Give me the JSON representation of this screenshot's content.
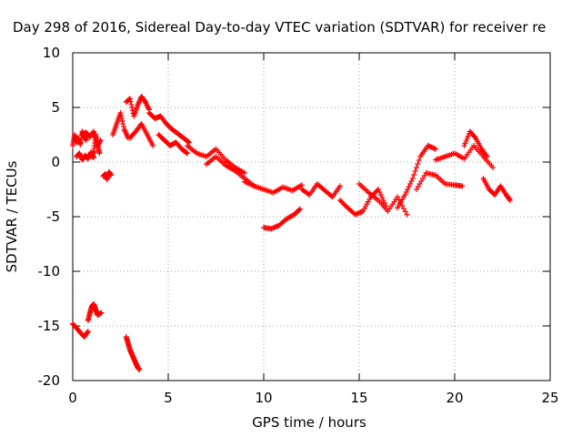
{
  "chart_data": {
    "type": "scatter",
    "title": "Day 298 of 2016, Sidereal Day-to-day VTEC variation (SDTVAR) for receiver re",
    "xlabel": "GPS time / hours",
    "ylabel": "SDTVAR / TECUs",
    "xlim": [
      0,
      25
    ],
    "ylim": [
      -20,
      10
    ],
    "x_ticks": [
      "0",
      "5",
      "10",
      "15",
      "20",
      "25"
    ],
    "y_ticks": [
      "-20",
      "-15",
      "-10",
      "-5",
      "0",
      "5",
      "10"
    ],
    "grid": true,
    "marker": "+",
    "series_color": "#ff0000",
    "series": [
      {
        "name": "SDTVAR",
        "segments": [
          {
            "x": [
              0.0,
              0.1,
              0.2,
              0.3,
              0.4,
              0.5,
              0.6,
              0.7
            ],
            "y": [
              1.5,
              2.5,
              1.8,
              2.2,
              1.6,
              2.8,
              2.4,
              2.0
            ]
          },
          {
            "x": [
              0.2,
              0.35,
              0.5,
              0.65,
              0.8,
              0.95,
              1.1
            ],
            "y": [
              0.5,
              0.8,
              0.2,
              0.6,
              0.3,
              0.9,
              0.4
            ]
          },
          {
            "x": [
              0.5,
              0.7,
              0.9,
              1.1,
              1.3,
              1.45
            ],
            "y": [
              2.5,
              2.7,
              2.3,
              2.8,
              1.5,
              2.0
            ]
          },
          {
            "x": [
              1.0,
              1.1,
              1.2,
              1.3,
              1.4
            ],
            "y": [
              0.5,
              1.0,
              2.5,
              1.5,
              0.8
            ]
          },
          {
            "x": [
              1.6,
              1.7,
              1.8,
              1.9,
              2.0
            ],
            "y": [
              -1.3,
              -1.1,
              -1.6,
              -0.9,
              -1.2
            ]
          },
          {
            "x": [
              2.1,
              2.3,
              2.5,
              2.7,
              2.9
            ],
            "y": [
              2.5,
              3.5,
              4.5,
              3.0,
              2.2
            ]
          },
          {
            "x": [
              2.8,
              3.0,
              3.2,
              3.4,
              3.6,
              3.8,
              4.0
            ],
            "y": [
              5.5,
              5.8,
              4.2,
              5.2,
              6.0,
              5.5,
              4.8
            ]
          },
          {
            "x": [
              3.0,
              3.3,
              3.6,
              3.9,
              4.2
            ],
            "y": [
              2.2,
              2.8,
              3.5,
              2.5,
              1.5
            ]
          },
          {
            "x": [
              4.0,
              4.3,
              4.6,
              4.9,
              5.2,
              5.5,
              5.8,
              6.1
            ],
            "y": [
              4.5,
              4.0,
              4.2,
              3.5,
              3.0,
              2.6,
              2.2,
              1.8
            ]
          },
          {
            "x": [
              4.5,
              4.8,
              5.1,
              5.4,
              5.7,
              6.0
            ],
            "y": [
              2.5,
              2.0,
              1.5,
              1.8,
              1.2,
              0.8
            ]
          },
          {
            "x": [
              6.0,
              6.5,
              7.0,
              7.5,
              8.0,
              8.5,
              9.0
            ],
            "y": [
              1.5,
              0.8,
              0.5,
              1.2,
              0.2,
              -0.5,
              -1.0
            ]
          },
          {
            "x": [
              7.0,
              7.5,
              8.0,
              8.5,
              9.0,
              9.5
            ],
            "y": [
              -0.2,
              0.5,
              -0.3,
              -0.8,
              -1.5,
              -2.2
            ]
          },
          {
            "x": [
              9.0,
              9.5,
              10.0,
              10.5,
              11.0,
              11.5,
              12.0
            ],
            "y": [
              -1.8,
              -2.2,
              -2.5,
              -2.8,
              -2.3,
              -2.6,
              -2.1
            ]
          },
          {
            "x": [
              10.0,
              10.4,
              10.8,
              11.2,
              11.6,
              11.9
            ],
            "y": [
              -6.0,
              -6.1,
              -5.8,
              -5.2,
              -4.8,
              -4.3
            ]
          },
          {
            "x": [
              12.0,
              12.4,
              12.8,
              13.2,
              13.6,
              14.0
            ],
            "y": [
              -2.5,
              -3.0,
              -2.0,
              -2.6,
              -3.2,
              -2.2
            ]
          },
          {
            "x": [
              14.0,
              14.4,
              14.8,
              15.2,
              15.6,
              16.0,
              16.4
            ],
            "y": [
              -3.5,
              -4.2,
              -4.8,
              -4.5,
              -3.2,
              -2.5,
              -4.0
            ]
          },
          {
            "x": [
              15.0,
              15.5,
              16.0,
              16.5,
              17.0,
              17.5
            ],
            "y": [
              -2.0,
              -2.8,
              -3.5,
              -4.5,
              -3.2,
              -4.8
            ]
          },
          {
            "x": [
              17.0,
              17.4,
              17.8,
              18.2,
              18.6,
              19.0
            ],
            "y": [
              -4.2,
              -3.0,
              -1.5,
              0.5,
              1.5,
              1.2
            ]
          },
          {
            "x": [
              18.0,
              18.5,
              19.0,
              19.5,
              20.0,
              20.4
            ],
            "y": [
              -2.5,
              -1.0,
              -1.2,
              -2.0,
              -2.1,
              -2.2
            ]
          },
          {
            "x": [
              19.0,
              19.5,
              20.0,
              20.5,
              21.0,
              21.5,
              22.0
            ],
            "y": [
              0.2,
              0.5,
              0.8,
              0.3,
              1.5,
              0.5,
              -0.5
            ]
          },
          {
            "x": [
              20.5,
              20.8,
              21.1,
              21.4,
              21.7
            ],
            "y": [
              1.5,
              2.8,
              2.2,
              1.2,
              0.5
            ]
          },
          {
            "x": [
              21.5,
              21.8,
              22.1,
              22.4,
              22.7,
              22.9
            ],
            "y": [
              -1.5,
              -2.5,
              -3.0,
              -2.2,
              -3.0,
              -3.5
            ]
          },
          {
            "x": [
              0.0,
              0.2,
              0.4,
              0.6,
              0.8
            ],
            "y": [
              -14.8,
              -15.2,
              -15.6,
              -16.0,
              -15.5
            ]
          },
          {
            "x": [
              0.8,
              0.9,
              1.0,
              1.1,
              1.2,
              1.3,
              1.5
            ],
            "y": [
              -14.5,
              -13.8,
              -13.2,
              -13.0,
              -13.5,
              -14.0,
              -13.8
            ]
          },
          {
            "x": [
              2.8,
              2.9,
              3.0,
              3.1,
              3.2,
              3.3,
              3.4,
              3.5
            ],
            "y": [
              -16.0,
              -16.6,
              -17.2,
              -17.6,
              -18.0,
              -18.4,
              -18.8,
              -19.0
            ]
          }
        ]
      }
    ]
  }
}
